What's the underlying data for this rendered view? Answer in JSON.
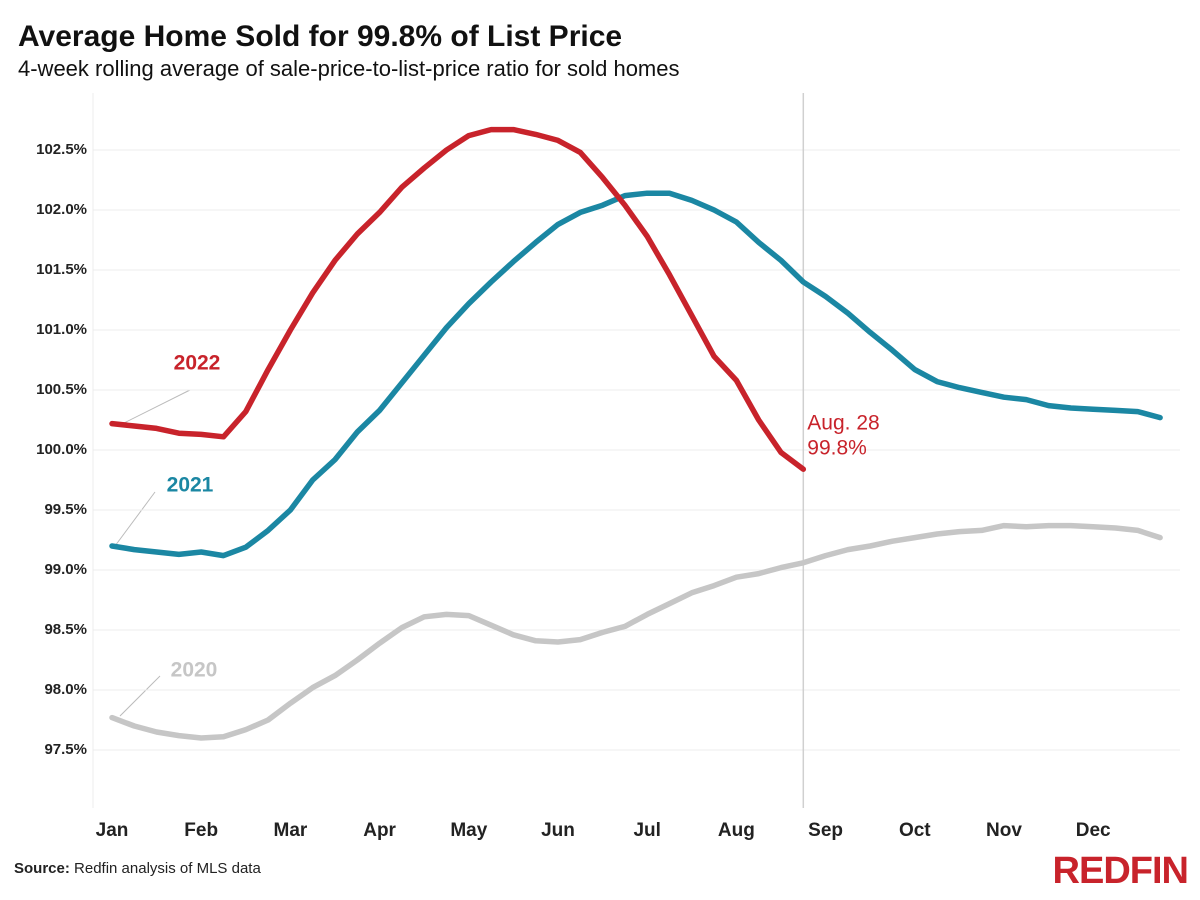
{
  "chart_data": {
    "type": "line",
    "title": "Average Home Sold for 99.8% of List Price",
    "subtitle": "4-week rolling average of sale-price-to-list-price ratio for sold homes",
    "categories": [
      "Jan",
      null,
      null,
      null,
      "Feb",
      null,
      null,
      null,
      "Mar",
      null,
      null,
      null,
      "Apr",
      null,
      null,
      null,
      "May",
      null,
      null,
      null,
      "Jun",
      null,
      null,
      null,
      "Jul",
      null,
      null,
      null,
      "Aug",
      null,
      null,
      null,
      "Sep",
      null,
      null,
      null,
      "Oct",
      null,
      null,
      null,
      "Nov",
      null,
      null,
      null,
      "Dec",
      null,
      null,
      null
    ],
    "series": [
      {
        "name": "2022",
        "color": "#c8232b",
        "values": [
          100.22,
          100.2,
          100.18,
          100.14,
          100.13,
          100.11,
          100.32,
          100.67,
          101.0,
          101.31,
          101.58,
          101.8,
          101.98,
          102.19,
          102.35,
          102.5,
          102.62,
          102.67,
          102.67,
          102.63,
          102.58,
          102.48,
          102.27,
          102.04,
          101.78,
          101.46,
          101.12,
          100.78,
          100.58,
          100.25,
          99.98,
          99.84,
          null,
          null,
          null,
          null,
          null,
          null,
          null,
          null,
          null,
          null,
          null,
          null,
          null,
          null,
          null,
          null
        ],
        "value_labels": [
          null,
          null,
          null,
          null,
          null,
          null,
          null,
          null,
          null,
          null,
          null,
          null,
          null,
          null,
          null,
          null,
          null,
          null,
          null,
          null,
          null,
          null,
          null,
          null,
          null,
          null,
          null,
          null,
          null,
          null,
          null,
          "99.8%",
          null,
          null,
          null,
          null,
          null,
          null,
          null,
          null,
          null,
          null,
          null,
          null,
          null,
          null,
          null,
          null
        ]
      },
      {
        "name": "2021",
        "color": "#1b87a3",
        "values": [
          99.2,
          99.17,
          99.15,
          99.13,
          99.15,
          99.12,
          99.19,
          99.33,
          99.5,
          99.75,
          99.92,
          100.15,
          100.33,
          100.56,
          100.79,
          101.02,
          101.22,
          101.4,
          101.57,
          101.73,
          101.88,
          101.98,
          102.04,
          102.12,
          102.14,
          102.14,
          102.08,
          102.0,
          101.9,
          101.73,
          101.58,
          101.4,
          101.28,
          101.14,
          100.98,
          100.83,
          100.67,
          100.57,
          100.52,
          100.48,
          100.44,
          100.42,
          100.37,
          100.35,
          100.34,
          100.33,
          100.32,
          100.27
        ]
      },
      {
        "name": "2020",
        "color": "#c6c6c6",
        "values": [
          97.77,
          97.7,
          97.65,
          97.62,
          97.6,
          97.61,
          97.67,
          97.75,
          97.89,
          98.02,
          98.12,
          98.25,
          98.39,
          98.52,
          98.61,
          98.63,
          98.62,
          98.54,
          98.46,
          98.41,
          98.4,
          98.42,
          98.48,
          98.53,
          98.63,
          98.72,
          98.81,
          98.87,
          98.94,
          98.97,
          99.02,
          99.06,
          99.12,
          99.17,
          99.2,
          99.24,
          99.27,
          99.3,
          99.32,
          99.33,
          99.37,
          99.36,
          99.37,
          99.37,
          99.36,
          99.35,
          99.33,
          99.27
        ]
      }
    ],
    "annotation": "Aug. 28",
    "ylim": [
      97.0,
      103.0
    ],
    "yticks": [
      {
        "value": 97.5,
        "label": "97.5%"
      },
      {
        "value": 98.0,
        "label": "98.0%"
      },
      {
        "value": 98.5,
        "label": "98.5%"
      },
      {
        "value": 99.0,
        "label": "99.0%"
      },
      {
        "value": 99.5,
        "label": "99.5%"
      },
      {
        "value": 100.0,
        "label": "100.0%"
      },
      {
        "value": 100.5,
        "label": "100.5%"
      },
      {
        "value": 101.0,
        "label": "101.0%"
      },
      {
        "value": 101.5,
        "label": "101.5%"
      },
      {
        "value": 102.0,
        "label": "102.0%"
      },
      {
        "value": 102.5,
        "label": "102.5%"
      }
    ],
    "grid": true,
    "source_label": "Source:",
    "source": "Redfin analysis of MLS data",
    "brand": "REDFIN"
  }
}
